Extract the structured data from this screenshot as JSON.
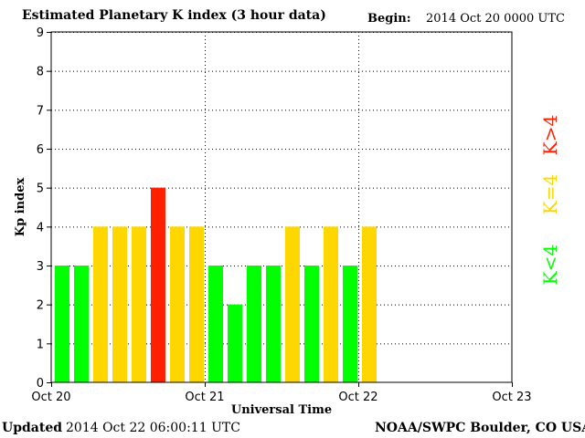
{
  "header": {
    "title": "Estimated Planetary K index (3 hour data)",
    "begin_label": "Begin:",
    "begin_value": "2014 Oct 20 0000 UTC"
  },
  "footer": {
    "updated_label": "Updated",
    "updated_value": "2014 Oct 22 06:00:11 UTC",
    "credit": "NOAA/SWPC Boulder, CO USA"
  },
  "colors": {
    "low": "#00ff00",
    "storm_watch": "#ffd700",
    "storm": "#ff2000",
    "grid": "#000000"
  },
  "chart_data": {
    "type": "bar",
    "title": "Estimated Planetary K index (3 hour data)",
    "xlabel": "Universal Time",
    "ylabel": "Kp index",
    "ylim": [
      0,
      9
    ],
    "yticks": [
      "0",
      "1",
      "2",
      "3",
      "4",
      "5",
      "6",
      "7",
      "8",
      "9"
    ],
    "xticks": [
      "Oct 20",
      "Oct 21",
      "Oct 22",
      "Oct 23"
    ],
    "bins_per_day": 8,
    "total_bins": 24,
    "grid": true,
    "values": [
      3,
      3,
      4,
      4,
      4,
      5,
      4,
      4,
      3,
      2,
      3,
      3,
      4,
      3,
      4,
      3,
      4
    ],
    "legend": [
      {
        "label": "K<4",
        "color": "#00ff00"
      },
      {
        "label": "K=4",
        "color": "#ffd700"
      },
      {
        "label": "K>4",
        "color": "#ff2000"
      }
    ]
  }
}
